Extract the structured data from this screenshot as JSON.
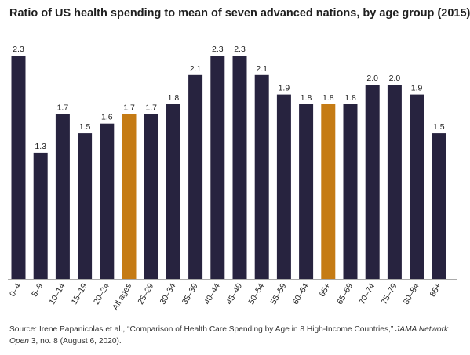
{
  "chart_data": {
    "type": "bar",
    "title": "Ratio of US health spending to mean of seven advanced nations, by age group (2015)",
    "xlabel": "",
    "ylabel": "",
    "ylim": [
      0,
      2.5
    ],
    "grid": false,
    "legend": "none",
    "categories": [
      "0–4",
      "5–9",
      "10–14",
      "15–19",
      "20–24",
      "All ages",
      "25–29",
      "30–34",
      "35–39",
      "40–44",
      "45–49",
      "50–54",
      "55–59",
      "60–64",
      "65+",
      "65–69",
      "70–74",
      "75–79",
      "80–84",
      "85+"
    ],
    "values": [
      2.3,
      1.3,
      1.7,
      1.5,
      1.6,
      1.7,
      1.7,
      1.8,
      2.1,
      2.3,
      2.3,
      2.1,
      1.9,
      1.8,
      1.8,
      1.8,
      2.0,
      2.0,
      1.9,
      1.5
    ],
    "value_labels": [
      "2.3",
      "1.3",
      "1.7",
      "1.5",
      "1.6",
      "1.7",
      "1.7",
      "1.8",
      "2.1",
      "2.3",
      "2.3",
      "2.1",
      "1.9",
      "1.8",
      "1.8",
      "1.8",
      "2.0",
      "2.0",
      "1.9",
      "1.5"
    ],
    "highlighted_categories": [
      "All ages",
      "65+"
    ],
    "colors": {
      "bar": "#27233f",
      "highlight": "#c57b14",
      "baseline": "#aaaaaa",
      "label": "#222222"
    }
  },
  "source": {
    "prefix": "Source: Irene Papanicolas et al., “Comparison of Health Care Spending by Age in 8 High-Income Countries,” ",
    "journal": "JAMA Network Open",
    "suffix": " 3, no. 8 (August 6, 2020)."
  }
}
